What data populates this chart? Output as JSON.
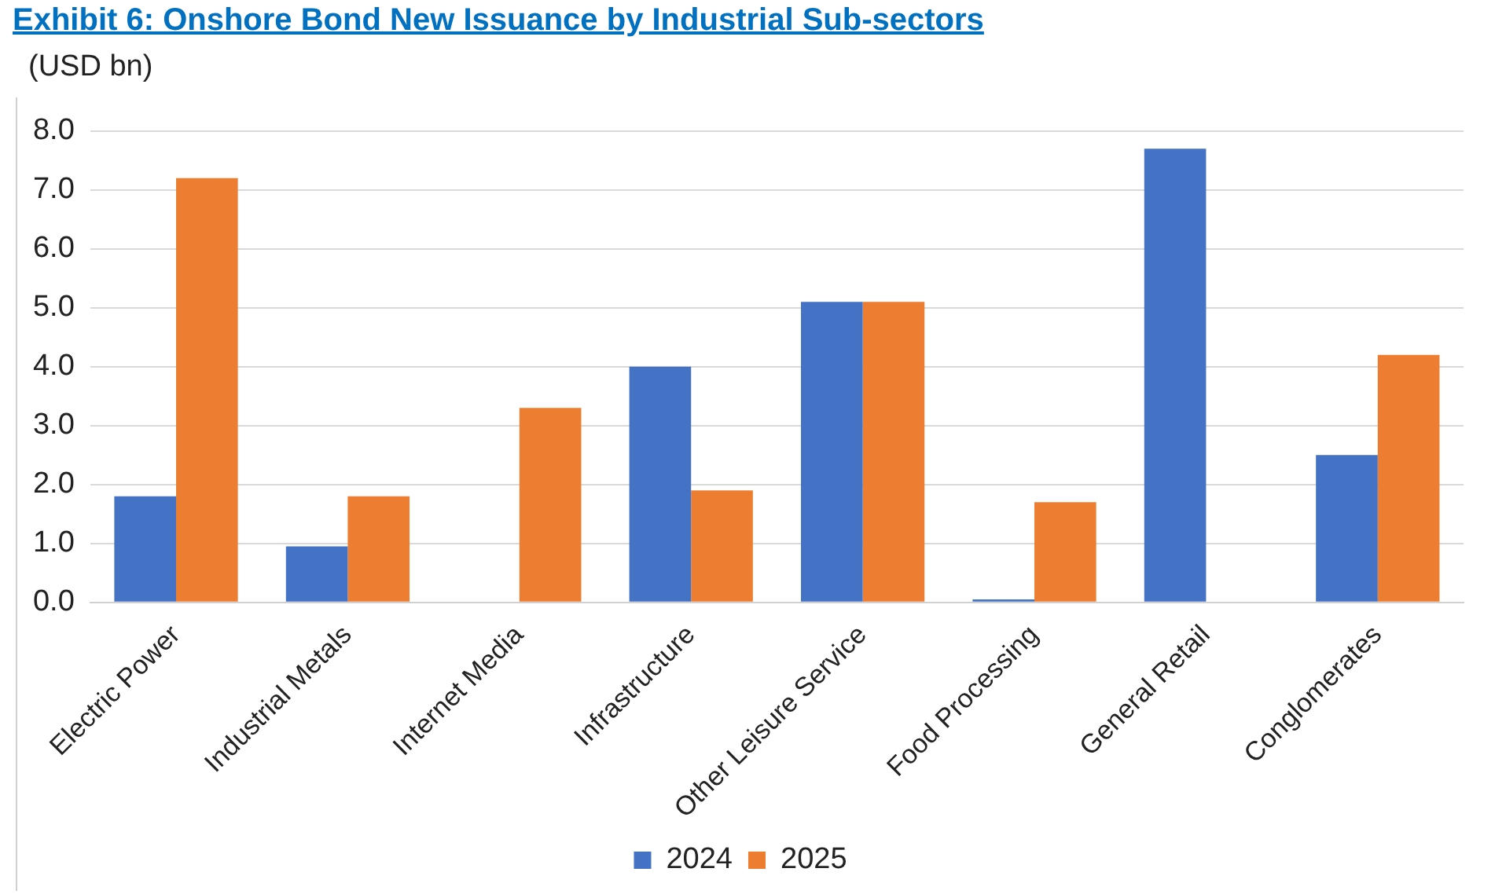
{
  "chart_data": {
    "type": "bar",
    "title": "Exhibit 6: Onshore Bond New Issuance by Industrial Sub-sectors",
    "ylabel": "(USD bn)",
    "categories": [
      "Electric Power",
      "Industrial Metals",
      "Internet Media",
      "Infrastructure",
      "Other Leisure Service",
      "Food Processing",
      "General Retail",
      "Conglomerates"
    ],
    "series": [
      {
        "name": "2024",
        "color": "#4472c4",
        "values": [
          1.8,
          0.95,
          0,
          4.0,
          5.1,
          0.05,
          7.7,
          2.5
        ]
      },
      {
        "name": "2025",
        "color": "#ed7d31",
        "values": [
          7.2,
          1.8,
          3.3,
          1.9,
          5.1,
          1.7,
          0,
          4.2
        ]
      }
    ],
    "ylim": [
      0,
      8
    ],
    "yticks": [
      {
        "value": 0,
        "label": "0.0"
      },
      {
        "value": 1,
        "label": "1.0"
      },
      {
        "value": 2,
        "label": "2.0"
      },
      {
        "value": 3,
        "label": "3.0"
      },
      {
        "value": 4,
        "label": "4.0"
      },
      {
        "value": 5,
        "label": "5.0"
      },
      {
        "value": 6,
        "label": "6.0"
      },
      {
        "value": 7,
        "label": "7.0"
      },
      {
        "value": 8,
        "label": "8.0"
      }
    ],
    "grid": "y",
    "legend": "bottom"
  }
}
